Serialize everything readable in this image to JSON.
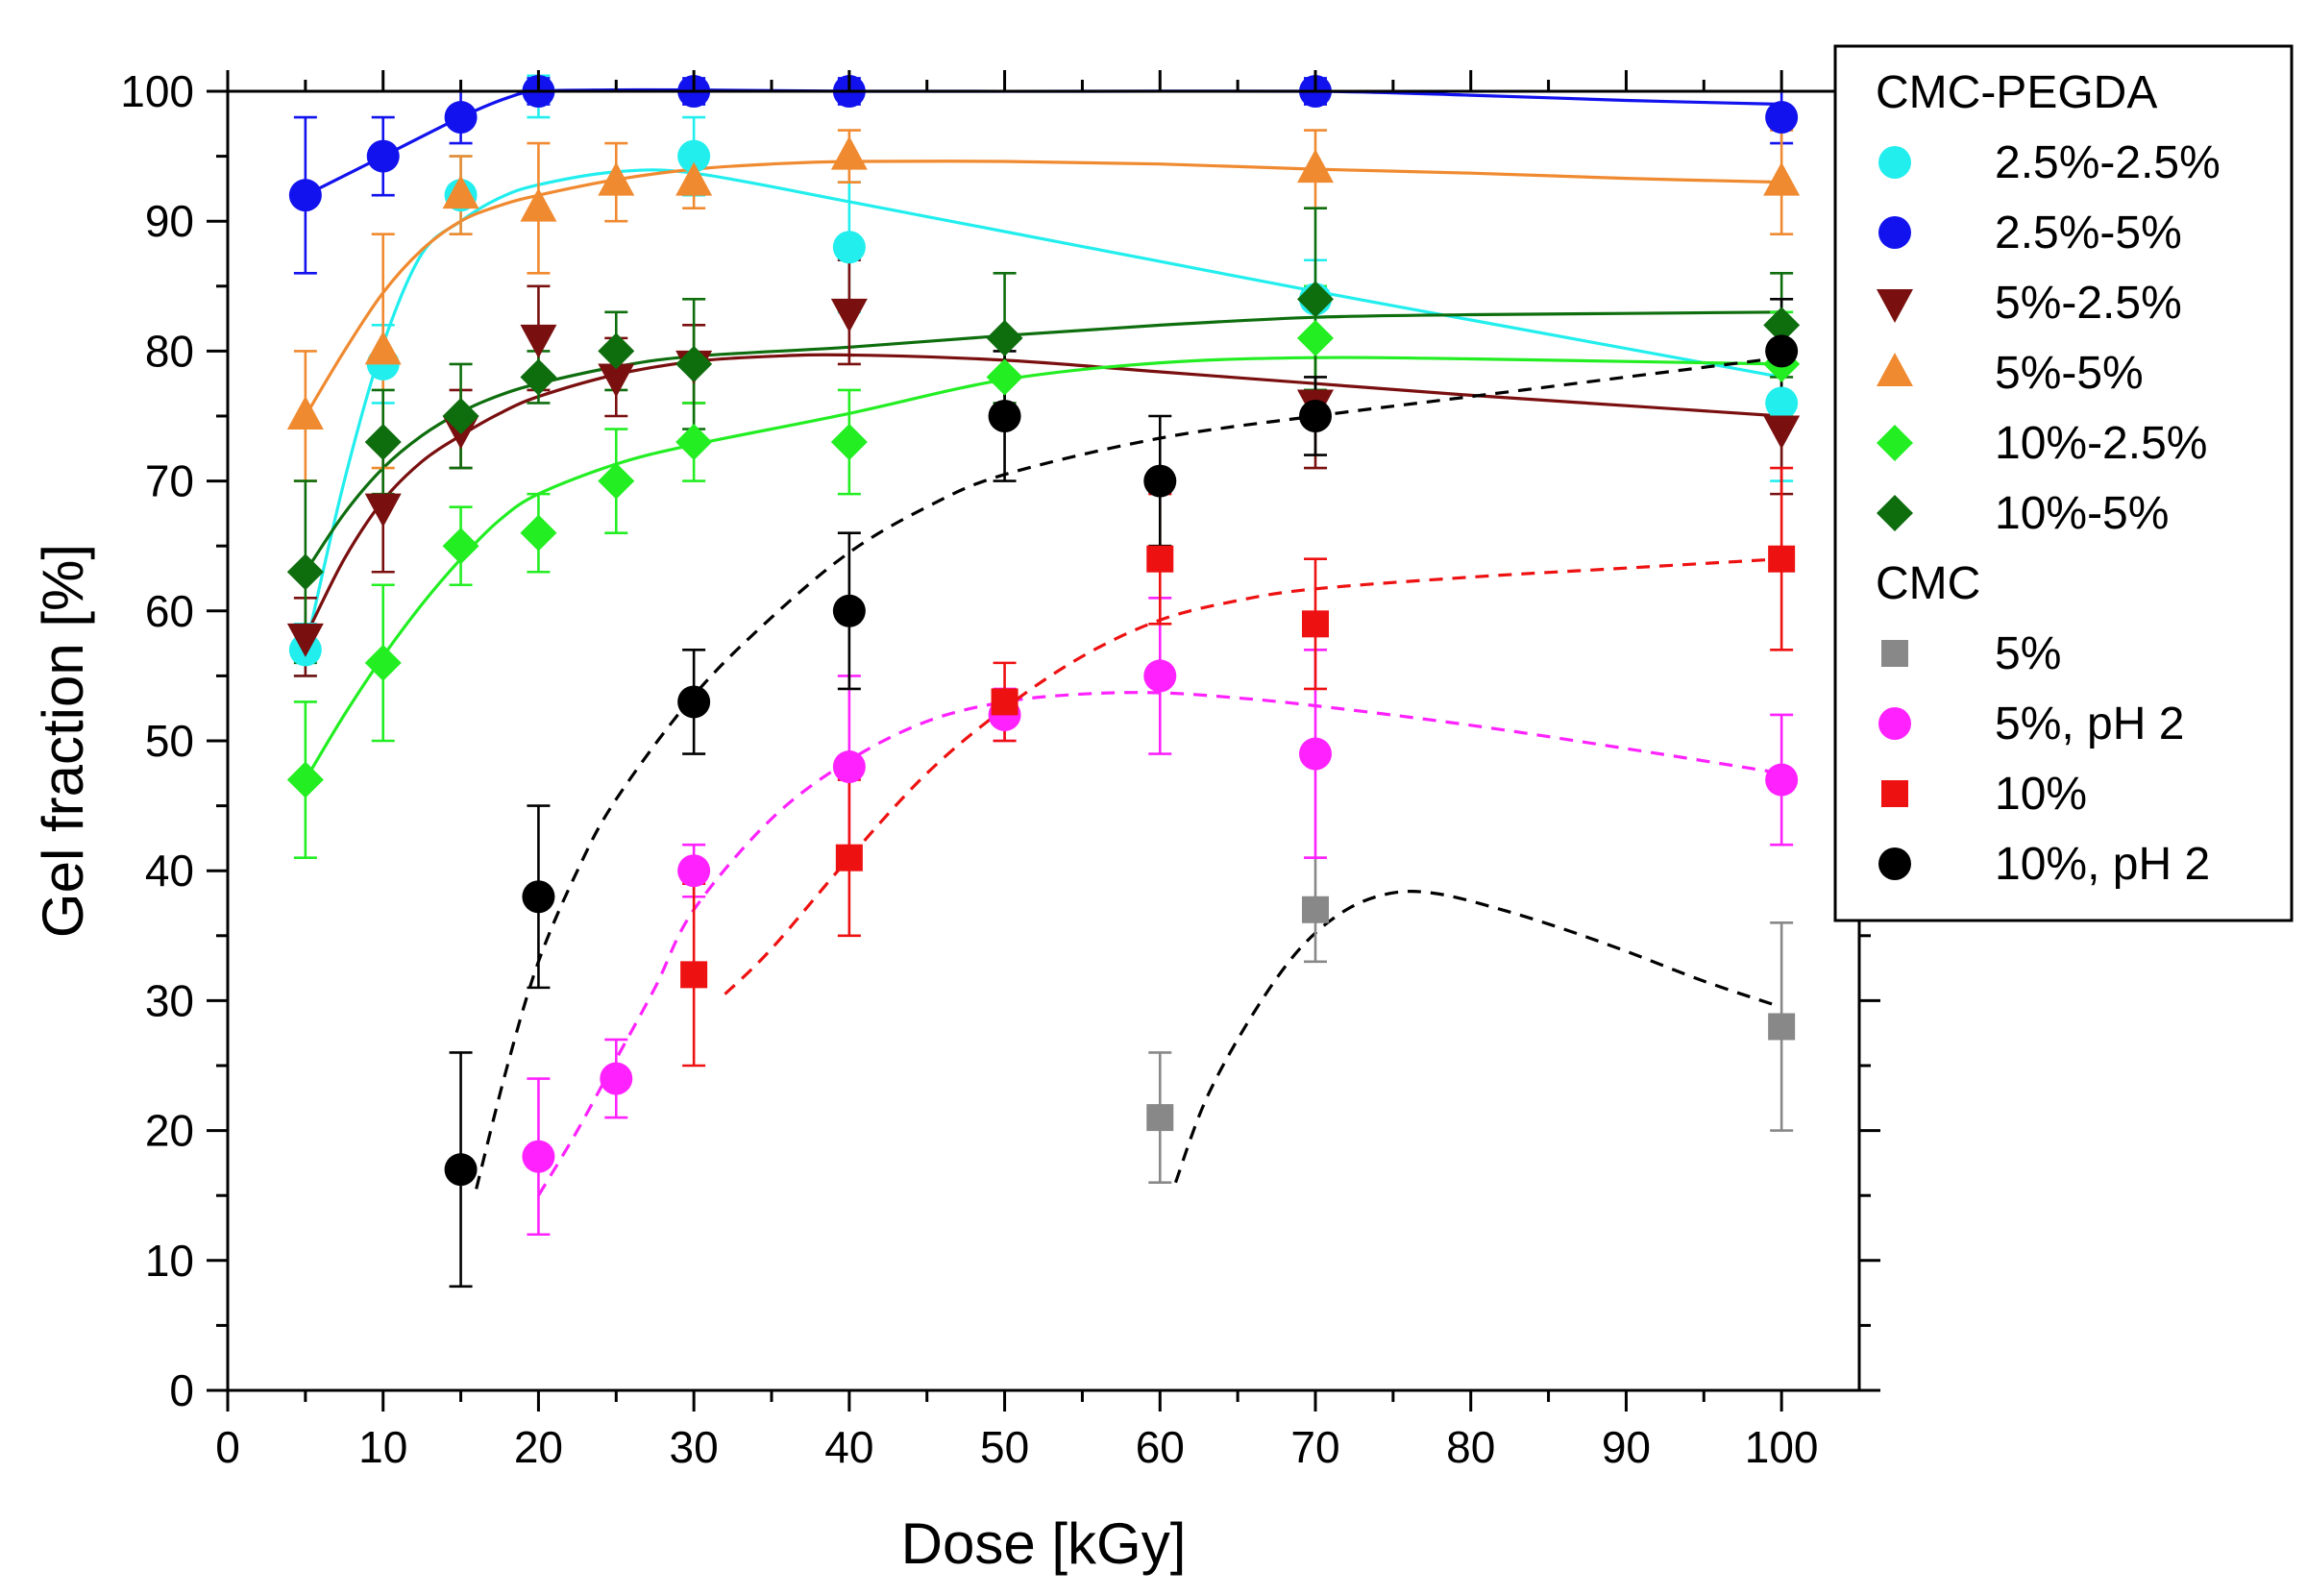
{
  "chart_data": {
    "type": "scatter",
    "title": "",
    "xlabel": "Dose [kGy]",
    "ylabel": "Gel fraction [%]",
    "xlim": [
      0,
      105
    ],
    "ylim": [
      0,
      100
    ],
    "xticks": [
      0,
      10,
      20,
      30,
      40,
      50,
      60,
      70,
      80,
      90,
      100
    ],
    "yticks": [
      0,
      10,
      20,
      30,
      40,
      50,
      60,
      70,
      80,
      90,
      100
    ],
    "grid": false,
    "legend_position": "top-right, outside plot",
    "legend_groups": [
      {
        "title": "CMC-PEGDA",
        "series": [
          "2.5%-2.5%",
          "2.5%-5%",
          "5%-2.5%",
          "5%-5%",
          "10%-2.5%",
          "10%-5%"
        ]
      },
      {
        "title": "CMC",
        "series": [
          "5%",
          "5%, pH 2",
          "10%",
          "10%, pH 2"
        ]
      }
    ],
    "series": [
      {
        "name": "2.5%-2.5%",
        "group": "CMC-PEGDA",
        "marker": "circle",
        "color": "#22eeee",
        "line": "solid",
        "points": [
          {
            "x": 5,
            "y": 57,
            "err": 2
          },
          {
            "x": 10,
            "y": 79,
            "err": 3
          },
          {
            "x": 15,
            "y": 92,
            "err": 3
          },
          {
            "x": 20,
            "y": 100,
            "err": 2
          },
          {
            "x": 30,
            "y": 95,
            "err": 3
          },
          {
            "x": 40,
            "y": 88,
            "err": 5
          },
          {
            "x": 70,
            "y": 84,
            "err": 3
          },
          {
            "x": 100,
            "y": 76,
            "err": 6
          }
        ],
        "fit": [
          [
            5,
            57
          ],
          [
            7.5,
            70
          ],
          [
            10,
            80.5
          ],
          [
            12.5,
            87.5
          ],
          [
            15,
            90
          ],
          [
            17.5,
            91.8
          ],
          [
            20,
            92.8
          ],
          [
            25,
            93.8
          ],
          [
            30,
            93.7
          ],
          [
            40,
            91.5
          ],
          [
            50,
            89.2
          ],
          [
            60,
            86.9
          ],
          [
            70,
            84.6
          ],
          [
            80,
            82.4
          ],
          [
            90,
            80.2
          ],
          [
            100,
            78
          ]
        ]
      },
      {
        "name": "2.5%-5%",
        "group": "CMC-PEGDA",
        "marker": "circle",
        "color": "#1212ee",
        "line": "solid",
        "points": [
          {
            "x": 5,
            "y": 92,
            "err": 6
          },
          {
            "x": 10,
            "y": 95,
            "err": 3
          },
          {
            "x": 15,
            "y": 98,
            "err": 2
          },
          {
            "x": 20,
            "y": 100,
            "err": 1
          },
          {
            "x": 30,
            "y": 100,
            "err": 1
          },
          {
            "x": 40,
            "y": 100,
            "err": 1
          },
          {
            "x": 70,
            "y": 100,
            "err": 1
          },
          {
            "x": 100,
            "y": 98,
            "err": 2
          }
        ],
        "fit": [
          [
            5,
            92
          ],
          [
            10,
            95
          ],
          [
            15,
            98
          ],
          [
            18,
            99.5
          ],
          [
            20,
            100
          ],
          [
            25,
            100.1
          ],
          [
            30,
            100.1
          ],
          [
            40,
            100
          ],
          [
            55,
            100
          ],
          [
            70,
            100
          ],
          [
            80,
            99.7
          ],
          [
            90,
            99.3
          ],
          [
            100,
            99
          ]
        ]
      },
      {
        "name": "5%-2.5%",
        "group": "CMC-PEGDA",
        "marker": "triangle-down",
        "color": "#7a0f0f",
        "line": "solid",
        "points": [
          {
            "x": 5,
            "y": 58,
            "err": 3
          },
          {
            "x": 10,
            "y": 68,
            "err": 5
          },
          {
            "x": 15,
            "y": 74,
            "err": 3
          },
          {
            "x": 20,
            "y": 81,
            "err": 4
          },
          {
            "x": 25,
            "y": 78,
            "err": 3
          },
          {
            "x": 30,
            "y": 79,
            "err": 3
          },
          {
            "x": 40,
            "y": 83,
            "err": 4
          },
          {
            "x": 70,
            "y": 76,
            "err": 5
          },
          {
            "x": 100,
            "y": 74,
            "err": 5
          }
        ],
        "fit": [
          [
            5,
            58
          ],
          [
            7.5,
            64
          ],
          [
            10,
            68.5
          ],
          [
            12.5,
            71.5
          ],
          [
            15,
            73.5
          ],
          [
            17.5,
            75.2
          ],
          [
            20,
            76.5
          ],
          [
            25,
            78.2
          ],
          [
            30,
            79.2
          ],
          [
            35,
            79.6
          ],
          [
            40,
            79.7
          ],
          [
            50,
            79.3
          ],
          [
            60,
            78.4
          ],
          [
            70,
            77.5
          ],
          [
            80,
            76.6
          ],
          [
            90,
            75.8
          ],
          [
            100,
            75
          ]
        ]
      },
      {
        "name": "5%-5%",
        "group": "CMC-PEGDA",
        "marker": "triangle-up",
        "color": "#f08a30",
        "line": "solid",
        "points": [
          {
            "x": 5,
            "y": 75,
            "err": 5
          },
          {
            "x": 10,
            "y": 80,
            "err": 9
          },
          {
            "x": 15,
            "y": 92,
            "err": 3
          },
          {
            "x": 20,
            "y": 91,
            "err": 5
          },
          {
            "x": 25,
            "y": 93,
            "err": 3
          },
          {
            "x": 30,
            "y": 93,
            "err": 2
          },
          {
            "x": 40,
            "y": 95,
            "err": 2
          },
          {
            "x": 70,
            "y": 94,
            "err": 3
          },
          {
            "x": 100,
            "y": 93,
            "err": 4
          }
        ],
        "fit": [
          [
            5,
            75
          ],
          [
            7.5,
            80
          ],
          [
            10,
            84.5
          ],
          [
            12.5,
            87.8
          ],
          [
            15,
            90
          ],
          [
            17.5,
            91.2
          ],
          [
            20,
            92
          ],
          [
            25,
            93.2
          ],
          [
            30,
            94
          ],
          [
            35,
            94.4
          ],
          [
            40,
            94.6
          ],
          [
            50,
            94.6
          ],
          [
            60,
            94.4
          ],
          [
            70,
            94
          ],
          [
            80,
            93.7
          ],
          [
            90,
            93.3
          ],
          [
            100,
            93
          ]
        ]
      },
      {
        "name": "10%-2.5%",
        "group": "CMC-PEGDA",
        "marker": "diamond",
        "color": "#22ee22",
        "line": "solid",
        "points": [
          {
            "x": 5,
            "y": 47,
            "err": 6
          },
          {
            "x": 10,
            "y": 56,
            "err": 6
          },
          {
            "x": 15,
            "y": 65,
            "err": 3
          },
          {
            "x": 20,
            "y": 66,
            "err": 3
          },
          {
            "x": 25,
            "y": 70,
            "err": 4
          },
          {
            "x": 30,
            "y": 73,
            "err": 3
          },
          {
            "x": 40,
            "y": 73,
            "err": 4
          },
          {
            "x": 50,
            "y": 78,
            "err": 3
          },
          {
            "x": 70,
            "y": 81,
            "err": 4
          },
          {
            "x": 100,
            "y": 79,
            "err": 4
          }
        ],
        "fit": [
          [
            5,
            47
          ],
          [
            7.5,
            52
          ],
          [
            10,
            56.5
          ],
          [
            12.5,
            60.5
          ],
          [
            15,
            64
          ],
          [
            17.5,
            67
          ],
          [
            20,
            69
          ],
          [
            25,
            71.3
          ],
          [
            30,
            72.8
          ],
          [
            40,
            75.2
          ],
          [
            50,
            77.8
          ],
          [
            60,
            79.1
          ],
          [
            70,
            79.5
          ],
          [
            80,
            79.4
          ],
          [
            90,
            79.2
          ],
          [
            100,
            79
          ]
        ]
      },
      {
        "name": "10%-5%",
        "group": "CMC-PEGDA",
        "marker": "diamond",
        "color": "#0e6e0e",
        "line": "solid",
        "points": [
          {
            "x": 5,
            "y": 63,
            "err": 7
          },
          {
            "x": 10,
            "y": 73,
            "err": 4
          },
          {
            "x": 15,
            "y": 75,
            "err": 4
          },
          {
            "x": 20,
            "y": 78,
            "err": 2
          },
          {
            "x": 25,
            "y": 80,
            "err": 3
          },
          {
            "x": 30,
            "y": 79,
            "err": 5
          },
          {
            "x": 50,
            "y": 81,
            "err": 5
          },
          {
            "x": 70,
            "y": 84,
            "err": 7
          },
          {
            "x": 100,
            "y": 82,
            "err": 4
          }
        ],
        "fit": [
          [
            5,
            63
          ],
          [
            7.5,
            67.5
          ],
          [
            10,
            71
          ],
          [
            12.5,
            73.5
          ],
          [
            15,
            75.3
          ],
          [
            17.5,
            76.6
          ],
          [
            20,
            77.5
          ],
          [
            25,
            78.8
          ],
          [
            30,
            79.6
          ],
          [
            40,
            80.3
          ],
          [
            50,
            81.2
          ],
          [
            60,
            82
          ],
          [
            70,
            82.6
          ],
          [
            80,
            82.8
          ],
          [
            90,
            82.9
          ],
          [
            100,
            83
          ]
        ]
      },
      {
        "name": "5%",
        "group": "CMC",
        "marker": "square",
        "color": "#888888",
        "line": "dashed",
        "points": [
          {
            "x": 60,
            "y": 21,
            "err": 5
          },
          {
            "x": 70,
            "y": 37,
            "err": 4
          },
          {
            "x": 100,
            "y": 28,
            "err": 8
          }
        ],
        "fit": [
          [
            61,
            16
          ],
          [
            63,
            22.5
          ],
          [
            66,
            29
          ],
          [
            69,
            34
          ],
          [
            72,
            37
          ],
          [
            75,
            38.3
          ],
          [
            78,
            38.2
          ],
          [
            82,
            37
          ],
          [
            86,
            35.5
          ],
          [
            90,
            33.8
          ],
          [
            95,
            31.5
          ],
          [
            100,
            29.5
          ]
        ]
      },
      {
        "name": "5%, pH 2",
        "group": "CMC",
        "marker": "circle",
        "color": "#ff22ff",
        "line": "dashed",
        "points": [
          {
            "x": 20,
            "y": 18,
            "err": 6
          },
          {
            "x": 25,
            "y": 24,
            "err": 3
          },
          {
            "x": 30,
            "y": 40,
            "err": 2
          },
          {
            "x": 40,
            "y": 48,
            "err": 7
          },
          {
            "x": 50,
            "y": 52,
            "err": 2
          },
          {
            "x": 60,
            "y": 55,
            "err": 6
          },
          {
            "x": 70,
            "y": 49,
            "err": 8
          },
          {
            "x": 100,
            "y": 47,
            "err": 5
          }
        ],
        "fit": [
          [
            20,
            15
          ],
          [
            22.5,
            20
          ],
          [
            25,
            25.5
          ],
          [
            27.5,
            31
          ],
          [
            30,
            37
          ],
          [
            35,
            44
          ],
          [
            40,
            48.5
          ],
          [
            45,
            51.5
          ],
          [
            50,
            53
          ],
          [
            55,
            53.6
          ],
          [
            60,
            53.7
          ],
          [
            65,
            53.3
          ],
          [
            70,
            52.7
          ],
          [
            80,
            51.2
          ],
          [
            90,
            49.4
          ],
          [
            100,
            47.5
          ]
        ]
      },
      {
        "name": "10%",
        "group": "CMC",
        "marker": "square",
        "color": "#ee1111",
        "line": "dashed",
        "points": [
          {
            "x": 30,
            "y": 32,
            "err": 7
          },
          {
            "x": 40,
            "y": 41,
            "err": 6
          },
          {
            "x": 50,
            "y": 53,
            "err": 3
          },
          {
            "x": 60,
            "y": 64,
            "err": 5
          },
          {
            "x": 70,
            "y": 59,
            "err": 5
          },
          {
            "x": 100,
            "y": 64,
            "err": 7
          }
        ],
        "fit": [
          [
            32,
            30.5
          ],
          [
            35,
            34
          ],
          [
            40,
            41
          ],
          [
            45,
            47.5
          ],
          [
            50,
            52.5
          ],
          [
            55,
            56.5
          ],
          [
            60,
            59.3
          ],
          [
            65,
            60.8
          ],
          [
            70,
            61.7
          ],
          [
            80,
            62.6
          ],
          [
            90,
            63.3
          ],
          [
            100,
            64
          ]
        ]
      },
      {
        "name": "10%, pH 2",
        "group": "CMC",
        "marker": "circle",
        "color": "#000000",
        "line": "dashed",
        "points": [
          {
            "x": 15,
            "y": 17,
            "err": 9
          },
          {
            "x": 20,
            "y": 38,
            "err": 7
          },
          {
            "x": 30,
            "y": 53,
            "err": 4
          },
          {
            "x": 40,
            "y": 60,
            "err": 6
          },
          {
            "x": 50,
            "y": 75,
            "err": 5
          },
          {
            "x": 60,
            "y": 70,
            "err": 5
          },
          {
            "x": 70,
            "y": 75,
            "err": 3
          },
          {
            "x": 100,
            "y": 80,
            "err": 4
          }
        ],
        "fit": [
          [
            16,
            15.5
          ],
          [
            18,
            25
          ],
          [
            20,
            33
          ],
          [
            22.5,
            40
          ],
          [
            25,
            45.5
          ],
          [
            30,
            53.5
          ],
          [
            35,
            59.5
          ],
          [
            40,
            64.5
          ],
          [
            45,
            68
          ],
          [
            50,
            70.5
          ],
          [
            60,
            73.3
          ],
          [
            70,
            75
          ],
          [
            80,
            76.5
          ],
          [
            90,
            78
          ],
          [
            100,
            79.5
          ]
        ]
      }
    ]
  }
}
